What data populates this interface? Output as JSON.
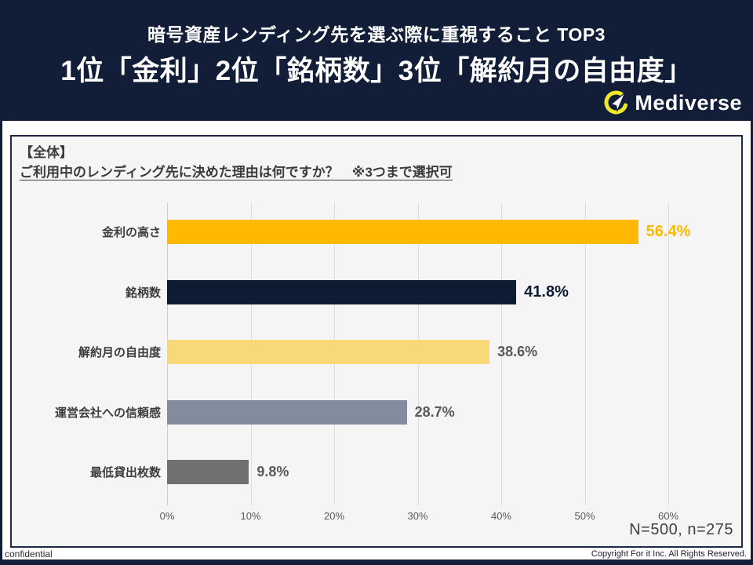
{
  "colors": {
    "navy": "#121E38",
    "panel_bg": "#F5F5F6",
    "gridline": "#DCDCDC",
    "logo_yellow": "#F0E62C"
  },
  "header": {
    "subtitle": "暗号資産レンディング先を選ぶ際に重視すること TOP3",
    "title": "1位「金利」2位「銘柄数」3位「解約月の自由度」",
    "brand": "Mediverse"
  },
  "panel": {
    "scope_label": "【全体】",
    "question": "ご利用中のレンディング先に決めた理由は何ですか？　※3つまで選択可",
    "sample_note": "N=500, n=275"
  },
  "chart_data": {
    "type": "bar",
    "orientation": "horizontal",
    "title": "ご利用中のレンディング先に決めた理由は何ですか？ ※3つまで選択可",
    "categories": [
      "金利の高さ",
      "銘柄数",
      "解約月の自由度",
      "運営会社への信頼感",
      "最低貸出枚数"
    ],
    "values": [
      56.4,
      41.8,
      38.6,
      28.7,
      9.8
    ],
    "value_labels": [
      "56.4%",
      "41.8%",
      "38.6%",
      "28.7%",
      "9.8%"
    ],
    "bar_colors": [
      "#FFB900",
      "#0D1B33",
      "#F8D878",
      "#828C9C",
      "#707070"
    ],
    "value_label_colors": [
      "#FFB900",
      "#0D1B33",
      "#595959",
      "#595959",
      "#595959"
    ],
    "value_label_emphasis": [
      true,
      true,
      false,
      false,
      false
    ],
    "xlim": [
      0,
      60
    ],
    "x_tick_labels": [
      "0%",
      "10%",
      "20%",
      "30%",
      "40%",
      "50%",
      "60%"
    ],
    "grid": true,
    "legend": false
  },
  "footer": {
    "left": "confidential",
    "right": "Copyright For it Inc. All Rights Reserved."
  }
}
